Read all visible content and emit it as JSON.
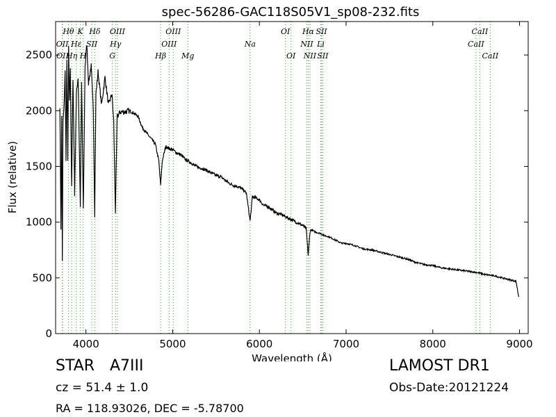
{
  "chart_data": {
    "type": "line",
    "title": "spec-56286-GAC118S05V1_sp08-232.fits",
    "xlabel": "Wavelength (Å)",
    "ylabel": "Flux (relative)",
    "xlim": [
      3650,
      9100
    ],
    "ylim": [
      0,
      2800
    ],
    "xticks": [
      4000,
      5000,
      6000,
      7000,
      8000,
      9000
    ],
    "yticks": [
      0,
      500,
      1000,
      1500,
      2000,
      2500
    ],
    "grid": false,
    "line_color": "#000000",
    "marker_color": "#2ca02c",
    "anchors": [
      [
        3700,
        2050
      ],
      [
        3712,
        950
      ],
      [
        3720,
        1950
      ],
      [
        3728,
        640
      ],
      [
        3735,
        1900
      ],
      [
        3745,
        2000
      ],
      [
        3760,
        2350
      ],
      [
        3770,
        1550
      ],
      [
        3780,
        2480
      ],
      [
        3790,
        1540
      ],
      [
        3800,
        2560
      ],
      [
        3810,
        2100
      ],
      [
        3820,
        2400
      ],
      [
        3835,
        1300
      ],
      [
        3850,
        2300
      ],
      [
        3870,
        1250
      ],
      [
        3890,
        2150
      ],
      [
        3910,
        2300
      ],
      [
        3935,
        1150
      ],
      [
        3950,
        2250
      ],
      [
        3970,
        1100
      ],
      [
        3990,
        2400
      ],
      [
        4010,
        2600
      ],
      [
        4030,
        2250
      ],
      [
        4060,
        2400
      ],
      [
        4085,
        2000
      ],
      [
        4101,
        1070
      ],
      [
        4115,
        2150
      ],
      [
        4140,
        2350
      ],
      [
        4180,
        2050
      ],
      [
        4220,
        2300
      ],
      [
        4260,
        2050
      ],
      [
        4300,
        2150
      ],
      [
        4320,
        1900
      ],
      [
        4340,
        1090
      ],
      [
        4360,
        1950
      ],
      [
        4400,
        1990
      ],
      [
        4450,
        1990
      ],
      [
        4500,
        2000
      ],
      [
        4550,
        1980
      ],
      [
        4600,
        1950
      ],
      [
        4650,
        1850
      ],
      [
        4700,
        1800
      ],
      [
        4750,
        1750
      ],
      [
        4800,
        1700
      ],
      [
        4840,
        1550
      ],
      [
        4861,
        1330
      ],
      [
        4880,
        1550
      ],
      [
        4920,
        1680
      ],
      [
        4960,
        1660
      ],
      [
        5000,
        1650
      ],
      [
        5050,
        1620
      ],
      [
        5100,
        1600
      ],
      [
        5150,
        1560
      ],
      [
        5200,
        1540
      ],
      [
        5250,
        1510
      ],
      [
        5300,
        1490
      ],
      [
        5350,
        1480
      ],
      [
        5400,
        1460
      ],
      [
        5450,
        1440
      ],
      [
        5500,
        1420
      ],
      [
        5550,
        1410
      ],
      [
        5600,
        1380
      ],
      [
        5650,
        1350
      ],
      [
        5700,
        1330
      ],
      [
        5750,
        1320
      ],
      [
        5800,
        1300
      ],
      [
        5850,
        1260
      ],
      [
        5893,
        1010
      ],
      [
        5920,
        1230
      ],
      [
        5950,
        1220
      ],
      [
        6000,
        1200
      ],
      [
        6050,
        1150
      ],
      [
        6100,
        1140
      ],
      [
        6150,
        1110
      ],
      [
        6200,
        1080
      ],
      [
        6250,
        1070
      ],
      [
        6300,
        1050
      ],
      [
        6350,
        1030
      ],
      [
        6400,
        1010
      ],
      [
        6450,
        990
      ],
      [
        6500,
        970
      ],
      [
        6540,
        940
      ],
      [
        6563,
        700
      ],
      [
        6585,
        920
      ],
      [
        6600,
        930
      ],
      [
        6650,
        910
      ],
      [
        6700,
        900
      ],
      [
        6750,
        880
      ],
      [
        6800,
        870
      ],
      [
        6850,
        850
      ],
      [
        6900,
        830
      ],
      [
        6950,
        810
      ],
      [
        7000,
        810
      ],
      [
        7100,
        790
      ],
      [
        7200,
        760
      ],
      [
        7300,
        750
      ],
      [
        7400,
        730
      ],
      [
        7500,
        710
      ],
      [
        7600,
        690
      ],
      [
        7700,
        670
      ],
      [
        7800,
        640
      ],
      [
        7900,
        620
      ],
      [
        8000,
        610
      ],
      [
        8100,
        590
      ],
      [
        8200,
        580
      ],
      [
        8300,
        570
      ],
      [
        8400,
        560
      ],
      [
        8500,
        550
      ],
      [
        8600,
        530
      ],
      [
        8700,
        520
      ],
      [
        8800,
        500
      ],
      [
        8900,
        480
      ],
      [
        8960,
        470
      ],
      [
        8990,
        330
      ]
    ],
    "lines": [
      {
        "label": "Hθ",
        "x": 3798,
        "row": 0
      },
      {
        "label": "Hη",
        "x": 3835,
        "row": 2
      },
      {
        "label": "Hε",
        "x": 3889,
        "row": 1
      },
      {
        "label": "K",
        "x": 3934,
        "row": 0
      },
      {
        "label": "H",
        "x": 3968,
        "row": 2
      },
      {
        "label": "SII",
        "x": 4068,
        "row": 1
      },
      {
        "label": "Hδ",
        "x": 4102,
        "row": 0
      },
      {
        "label": "OII",
        "x": 3727,
        "row": 1
      },
      {
        "label": "OII",
        "x": 3730,
        "row": 2
      },
      {
        "label": "OIII",
        "x": 4363,
        "row": 0
      },
      {
        "label": "Hγ",
        "x": 4341,
        "row": 1
      },
      {
        "label": "G",
        "x": 4304,
        "row": 2
      },
      {
        "label": "Hβ",
        "x": 4861,
        "row": 2
      },
      {
        "label": "OIII",
        "x": 4959,
        "row": 1
      },
      {
        "label": "OIII",
        "x": 5007,
        "row": 0
      },
      {
        "label": "Mg",
        "x": 5175,
        "row": 2
      },
      {
        "label": "Na",
        "x": 5893,
        "row": 1
      },
      {
        "label": "OI",
        "x": 6300,
        "row": 0
      },
      {
        "label": "OI",
        "x": 6364,
        "row": 2
      },
      {
        "label": "NII",
        "x": 6548,
        "row": 1
      },
      {
        "label": "Hα",
        "x": 6563,
        "row": 0
      },
      {
        "label": "NII",
        "x": 6583,
        "row": 2
      },
      {
        "label": "SII",
        "x": 6716,
        "row": 0
      },
      {
        "label": "Li",
        "x": 6708,
        "row": 1
      },
      {
        "label": "SII",
        "x": 6731,
        "row": 2
      },
      {
        "label": "CaII",
        "x": 8498,
        "row": 1
      },
      {
        "label": "CaII",
        "x": 8542,
        "row": 0
      },
      {
        "label": "CaII",
        "x": 8662,
        "row": 2
      }
    ]
  },
  "info": {
    "class": "STAR",
    "subclass": "A7III",
    "survey": "LAMOST DR1",
    "redshift": "cz = 51.4 ± 1.0",
    "obs_date": "Obs-Date:20121224",
    "coords": "RA = 118.93026, DEC = -5.78700"
  }
}
